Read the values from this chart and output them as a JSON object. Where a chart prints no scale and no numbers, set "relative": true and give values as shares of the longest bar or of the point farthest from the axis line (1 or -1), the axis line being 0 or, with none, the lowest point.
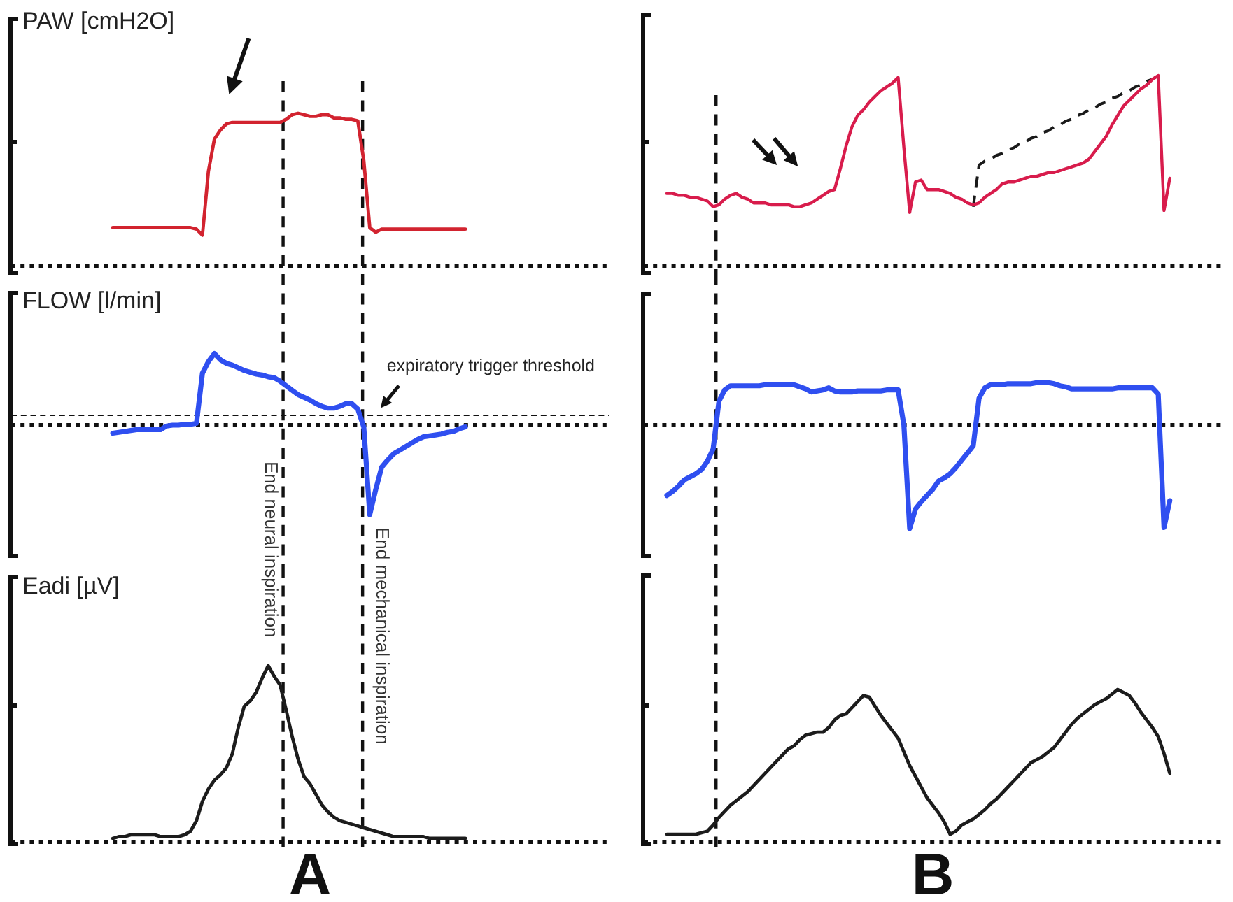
{
  "chart_data": [
    {
      "type": "line",
      "ylabel": "PAW [cmH2O]",
      "relative": true,
      "tick_labels": false,
      "marker": "none",
      "categories": [
        null,
        null,
        null,
        null,
        null,
        null,
        null,
        null,
        null,
        null,
        null,
        null,
        null,
        null,
        null,
        null,
        null,
        null,
        null,
        null,
        null,
        null,
        null,
        null,
        null,
        null,
        null,
        null,
        null,
        null,
        null,
        null,
        null,
        null,
        null,
        null,
        null,
        null,
        null,
        null,
        null,
        null,
        null,
        null,
        null,
        null,
        null,
        null,
        null,
        null,
        null,
        null,
        null,
        null,
        null,
        null,
        null,
        null,
        null,
        null,
        null,
        null,
        null,
        null,
        null,
        null,
        null,
        null,
        null,
        null,
        null,
        null,
        null,
        null,
        null,
        null,
        null,
        null,
        null,
        null,
        null,
        null,
        null,
        null,
        null,
        null,
        null,
        null,
        null,
        null,
        null,
        null,
        null,
        null,
        null,
        null,
        null,
        null,
        null,
        null,
        null
      ],
      "series": [
        {
          "color": "#d2232f",
          "values": [
            null,
            null,
            null,
            null,
            null,
            null,
            null,
            null,
            null,
            null,
            null,
            null,
            null,
            null,
            null,
            null,
            null,
            0.25,
            0.25,
            0.25,
            0.25,
            0.25,
            0.25,
            0.25,
            0.25,
            0.25,
            0.25,
            0.25,
            0.25,
            0.25,
            0.25,
            0.24,
            0.2,
            0.62,
            0.83,
            0.89,
            0.93,
            0.94,
            0.94,
            0.94,
            0.94,
            0.94,
            0.94,
            0.94,
            0.94,
            0.94,
            0.96,
            0.99,
            1,
            0.99,
            0.98,
            0.98,
            0.99,
            0.99,
            0.97,
            0.97,
            0.96,
            0.96,
            0.95,
            0.69,
            0.25,
            0.22,
            0.24,
            0.24,
            0.24,
            0.24,
            0.24,
            0.24,
            0.24,
            0.24,
            0.24,
            0.24,
            0.24,
            0.24,
            0.24,
            0.24,
            0.24,
            null,
            null,
            null,
            null,
            null,
            null,
            null,
            null,
            null,
            null,
            null,
            null,
            null,
            null,
            null,
            null,
            null,
            null,
            null,
            null,
            null,
            null,
            null,
            null
          ]
        }
      ]
    },
    {
      "type": "line",
      "relative": true,
      "tick_labels": false,
      "marker": "none",
      "categories": [
        null,
        null,
        null,
        null,
        null,
        null,
        null,
        null,
        null,
        null,
        null,
        null,
        null,
        null,
        null,
        null,
        null,
        null,
        null,
        null,
        null,
        null,
        null,
        null,
        null,
        null,
        null,
        null,
        null,
        null,
        null,
        null,
        null,
        null,
        null,
        null,
        null,
        null,
        null,
        null,
        null,
        null,
        null,
        null,
        null,
        null,
        null,
        null,
        null,
        null,
        null,
        null,
        null,
        null,
        null,
        null,
        null,
        null,
        null,
        null,
        null,
        null,
        null,
        null,
        null,
        null,
        null,
        null,
        null,
        null,
        null,
        null,
        null,
        null,
        null,
        null,
        null,
        null,
        null,
        null,
        null,
        null,
        null,
        null,
        null,
        null,
        null,
        null,
        null,
        null,
        null,
        null,
        null,
        null,
        null,
        null,
        null,
        null,
        null,
        null,
        null
      ],
      "series": [
        {
          "color": "#d81c4c",
          "values": [
            null,
            null,
            null,
            null,
            0.38,
            0.38,
            0.37,
            0.37,
            0.36,
            0.36,
            0.35,
            0.34,
            0.31,
            0.32,
            0.35,
            0.37,
            0.38,
            0.36,
            0.35,
            0.33,
            0.33,
            0.33,
            0.32,
            0.32,
            0.32,
            0.32,
            0.31,
            0.31,
            0.32,
            0.33,
            0.35,
            0.37,
            0.39,
            0.4,
            0.51,
            0.63,
            0.73,
            0.79,
            0.82,
            0.86,
            0.89,
            0.92,
            0.94,
            0.96,
            0.99,
            0.62,
            0.28,
            0.44,
            0.45,
            0.4,
            0.4,
            0.4,
            0.39,
            0.38,
            0.36,
            0.35,
            0.33,
            0.32,
            0.33,
            0.36,
            0.38,
            0.4,
            0.43,
            0.44,
            0.44,
            0.45,
            0.46,
            0.47,
            0.47,
            0.48,
            0.49,
            0.49,
            0.5,
            0.51,
            0.52,
            0.53,
            0.54,
            0.56,
            0.6,
            0.64,
            0.68,
            0.74,
            0.79,
            0.84,
            0.87,
            0.9,
            0.93,
            0.95,
            0.98,
            1,
            0.29,
            0.46,
            null,
            null,
            null,
            null,
            null,
            null,
            null,
            null,
            null
          ]
        },
        {
          "type": "line",
          "line_style": "dashed",
          "color": "#1a1a1a",
          "values": [
            null,
            null,
            null,
            null,
            null,
            null,
            null,
            null,
            null,
            null,
            null,
            null,
            null,
            null,
            null,
            null,
            null,
            null,
            null,
            null,
            null,
            null,
            null,
            null,
            null,
            null,
            null,
            null,
            null,
            null,
            null,
            null,
            null,
            null,
            null,
            null,
            null,
            null,
            null,
            null,
            null,
            null,
            null,
            null,
            null,
            null,
            null,
            null,
            null,
            null,
            null,
            null,
            null,
            null,
            null,
            null,
            null,
            0.31,
            0.53,
            0.55,
            0.56,
            0.58,
            0.59,
            0.61,
            0.62,
            0.64,
            0.65,
            0.67,
            0.68,
            0.7,
            0.71,
            0.73,
            0.74,
            0.76,
            0.77,
            0.79,
            0.8,
            0.82,
            0.83,
            0.85,
            0.86,
            0.88,
            0.89,
            0.91,
            0.92,
            0.94,
            0.95,
            0.97,
            0.98,
            1,
            null,
            null,
            null,
            null,
            null,
            null,
            null,
            null,
            null,
            null,
            null
          ]
        }
      ]
    },
    {
      "type": "line",
      "ylabel": "FLOW [l/min]",
      "relative": true,
      "tick_labels": false,
      "marker": "none",
      "categories": [
        null,
        null,
        null,
        null,
        null,
        null,
        null,
        null,
        null,
        null,
        null,
        null,
        null,
        null,
        null,
        null,
        null,
        null,
        null,
        null,
        null,
        null,
        null,
        null,
        null,
        null,
        null,
        null,
        null,
        null,
        null,
        null,
        null,
        null,
        null,
        null,
        null,
        null,
        null,
        null,
        null,
        null,
        null,
        null,
        null,
        null,
        null,
        null,
        null,
        null,
        null,
        null,
        null,
        null,
        null,
        null,
        null,
        null,
        null,
        null,
        null,
        null,
        null,
        null,
        null,
        null,
        null,
        null,
        null,
        null,
        null,
        null,
        null,
        null,
        null,
        null,
        null,
        null,
        null,
        null,
        null,
        null,
        null,
        null,
        null,
        null,
        null,
        null,
        null,
        null,
        null,
        null,
        null,
        null,
        null,
        null,
        null,
        null,
        null,
        null,
        null
      ],
      "series": [
        {
          "color": "#2f4ff0",
          "values": [
            null,
            null,
            null,
            null,
            null,
            null,
            null,
            null,
            null,
            null,
            null,
            null,
            null,
            null,
            null,
            null,
            null,
            -0.09,
            -0.08,
            -0.07,
            -0.06,
            -0.05,
            -0.05,
            -0.05,
            -0.05,
            -0.05,
            -0.01,
            0,
            0,
            0.01,
            0.01,
            0.02,
            0.58,
            0.71,
            0.8,
            0.73,
            0.69,
            0.67,
            0.64,
            0.61,
            0.59,
            0.57,
            0.56,
            0.54,
            0.53,
            0.49,
            0.44,
            0.39,
            0.34,
            0.31,
            0.28,
            0.24,
            0.21,
            0.19,
            0.19,
            0.21,
            0.24,
            0.24,
            0.18,
            -0.02,
            -1,
            -0.72,
            -0.47,
            -0.39,
            -0.32,
            -0.28,
            -0.24,
            -0.2,
            -0.16,
            -0.13,
            -0.12,
            -0.11,
            -0.1,
            -0.08,
            -0.07,
            -0.04,
            -0.02,
            null,
            null,
            null,
            null,
            null,
            null,
            null,
            null,
            null,
            null,
            null,
            null,
            null,
            null,
            null,
            null,
            null,
            null,
            null,
            null,
            null,
            null,
            null,
            null
          ]
        }
      ],
      "ref_lines": [
        {
          "axis": "y",
          "value": 0,
          "line_style": "dotted"
        },
        {
          "axis": "y",
          "value": 0.11,
          "line_style": "dashed",
          "label": "expiratory trigger threshold"
        }
      ],
      "annotations": [
        "End neural inspiration",
        "End mechanical inspiration"
      ]
    },
    {
      "type": "line",
      "relative": true,
      "tick_labels": false,
      "marker": "none",
      "categories": [
        null,
        null,
        null,
        null,
        null,
        null,
        null,
        null,
        null,
        null,
        null,
        null,
        null,
        null,
        null,
        null,
        null,
        null,
        null,
        null,
        null,
        null,
        null,
        null,
        null,
        null,
        null,
        null,
        null,
        null,
        null,
        null,
        null,
        null,
        null,
        null,
        null,
        null,
        null,
        null,
        null,
        null,
        null,
        null,
        null,
        null,
        null,
        null,
        null,
        null,
        null,
        null,
        null,
        null,
        null,
        null,
        null,
        null,
        null,
        null,
        null,
        null,
        null,
        null,
        null,
        null,
        null,
        null,
        null,
        null,
        null,
        null,
        null,
        null,
        null,
        null,
        null,
        null,
        null,
        null,
        null,
        null,
        null,
        null,
        null,
        null,
        null,
        null,
        null,
        null,
        null,
        null,
        null,
        null,
        null,
        null,
        null,
        null,
        null,
        null,
        null
      ],
      "series": [
        {
          "color": "#2f4ff0",
          "values": [
            null,
            null,
            null,
            null,
            -0.68,
            -0.64,
            -0.59,
            -0.53,
            -0.5,
            -0.47,
            -0.43,
            -0.35,
            -0.23,
            0.23,
            0.34,
            0.38,
            0.38,
            0.38,
            0.38,
            0.38,
            0.38,
            0.39,
            0.39,
            0.39,
            0.39,
            0.39,
            0.39,
            0.37,
            0.35,
            0.32,
            0.33,
            0.34,
            0.36,
            0.33,
            0.32,
            0.32,
            0.32,
            0.33,
            0.33,
            0.33,
            0.33,
            0.33,
            0.34,
            0.34,
            0.34,
            0,
            -1,
            -0.81,
            -0.74,
            -0.68,
            -0.62,
            -0.54,
            -0.51,
            -0.47,
            -0.41,
            -0.34,
            -0.27,
            -0.2,
            0.26,
            0.36,
            0.39,
            0.39,
            0.39,
            0.4,
            0.4,
            0.4,
            0.4,
            0.4,
            0.41,
            0.41,
            0.41,
            0.4,
            0.38,
            0.37,
            0.35,
            0.35,
            0.35,
            0.35,
            0.35,
            0.35,
            0.35,
            0.35,
            0.36,
            0.36,
            0.36,
            0.36,
            0.36,
            0.36,
            0.36,
            0.3,
            -0.99,
            -0.73,
            null,
            null,
            null,
            null,
            null,
            null,
            null,
            null,
            null
          ]
        }
      ],
      "ref_lines": [
        {
          "axis": "y",
          "value": 0,
          "line_style": "dotted"
        }
      ]
    },
    {
      "type": "line",
      "ylabel": "Eadi [µV]",
      "xlabel": "A",
      "relative": true,
      "tick_labels": false,
      "marker": "none",
      "categories": [
        null,
        null,
        null,
        null,
        null,
        null,
        null,
        null,
        null,
        null,
        null,
        null,
        null,
        null,
        null,
        null,
        null,
        null,
        null,
        null,
        null,
        null,
        null,
        null,
        null,
        null,
        null,
        null,
        null,
        null,
        null,
        null,
        null,
        null,
        null,
        null,
        null,
        null,
        null,
        null,
        null,
        null,
        null,
        null,
        null,
        null,
        null,
        null,
        null,
        null,
        null,
        null,
        null,
        null,
        null,
        null,
        null,
        null,
        null,
        null,
        null,
        null,
        null,
        null,
        null,
        null,
        null,
        null,
        null,
        null,
        null,
        null,
        null,
        null,
        null,
        null,
        null,
        null,
        null,
        null,
        null,
        null,
        null,
        null,
        null,
        null,
        null,
        null,
        null,
        null,
        null,
        null,
        null,
        null,
        null,
        null,
        null,
        null,
        null,
        null,
        null
      ],
      "series": [
        {
          "color": "#1c1c1c",
          "values": [
            null,
            null,
            null,
            null,
            null,
            null,
            null,
            null,
            null,
            null,
            null,
            null,
            null,
            null,
            null,
            null,
            null,
            0.02,
            0.03,
            0.03,
            0.04,
            0.04,
            0.04,
            0.04,
            0.04,
            0.03,
            0.03,
            0.03,
            0.03,
            0.04,
            0.06,
            0.12,
            0.23,
            0.3,
            0.35,
            0.38,
            0.42,
            0.5,
            0.65,
            0.77,
            0.8,
            0.85,
            0.93,
            1,
            0.94,
            0.89,
            0.75,
            0.6,
            0.47,
            0.37,
            0.33,
            0.27,
            0.21,
            0.17,
            0.14,
            0.12,
            0.11,
            0.1,
            0.09,
            0.08,
            0.07,
            0.06,
            0.05,
            0.04,
            0.03,
            0.03,
            0.03,
            0.03,
            0.03,
            0.03,
            0.02,
            0.02,
            0.02,
            0.02,
            0.02,
            0.02,
            0.02,
            null,
            null,
            null,
            null,
            null,
            null,
            null,
            null,
            null,
            null,
            null,
            null,
            null,
            null,
            null,
            null,
            null,
            null,
            null,
            null,
            null,
            null,
            null,
            null
          ]
        }
      ]
    },
    {
      "type": "line",
      "xlabel": "B",
      "relative": true,
      "tick_labels": false,
      "marker": "none",
      "categories": [
        null,
        null,
        null,
        null,
        null,
        null,
        null,
        null,
        null,
        null,
        null,
        null,
        null,
        null,
        null,
        null,
        null,
        null,
        null,
        null,
        null,
        null,
        null,
        null,
        null,
        null,
        null,
        null,
        null,
        null,
        null,
        null,
        null,
        null,
        null,
        null,
        null,
        null,
        null,
        null,
        null,
        null,
        null,
        null,
        null,
        null,
        null,
        null,
        null,
        null,
        null,
        null,
        null,
        null,
        null,
        null,
        null,
        null,
        null,
        null,
        null,
        null,
        null,
        null,
        null,
        null,
        null,
        null,
        null,
        null,
        null,
        null,
        null,
        null,
        null,
        null,
        null,
        null,
        null,
        null,
        null,
        null,
        null,
        null,
        null,
        null,
        null,
        null,
        null,
        null,
        null,
        null,
        null,
        null,
        null,
        null,
        null,
        null,
        null,
        null,
        null
      ],
      "series": [
        {
          "color": "#1c1c1c",
          "values": [
            null,
            null,
            null,
            null,
            0.05,
            0.05,
            0.05,
            0.05,
            0.05,
            0.05,
            0.06,
            0.07,
            0.11,
            0.16,
            0.2,
            0.24,
            0.27,
            0.3,
            0.33,
            0.37,
            0.41,
            0.45,
            0.49,
            0.53,
            0.57,
            0.61,
            0.63,
            0.67,
            0.7,
            0.71,
            0.72,
            0.72,
            0.75,
            0.8,
            0.83,
            0.84,
            0.88,
            0.92,
            0.96,
            0.95,
            0.89,
            0.83,
            0.78,
            0.73,
            0.68,
            0.59,
            0.5,
            0.43,
            0.36,
            0.29,
            0.24,
            0.19,
            0.13,
            0.05,
            0.07,
            0.11,
            0.13,
            0.15,
            0.18,
            0.21,
            0.25,
            0.28,
            0.32,
            0.36,
            0.4,
            0.44,
            0.48,
            0.52,
            0.54,
            0.56,
            0.59,
            0.62,
            0.67,
            0.72,
            0.77,
            0.81,
            0.84,
            0.87,
            0.9,
            0.92,
            0.94,
            0.97,
            1,
            0.98,
            0.96,
            0.91,
            0.85,
            0.8,
            0.75,
            0.69,
            0.58,
            0.45,
            null,
            null,
            null,
            null,
            null,
            null,
            null,
            null,
            null
          ]
        }
      ]
    }
  ]
}
